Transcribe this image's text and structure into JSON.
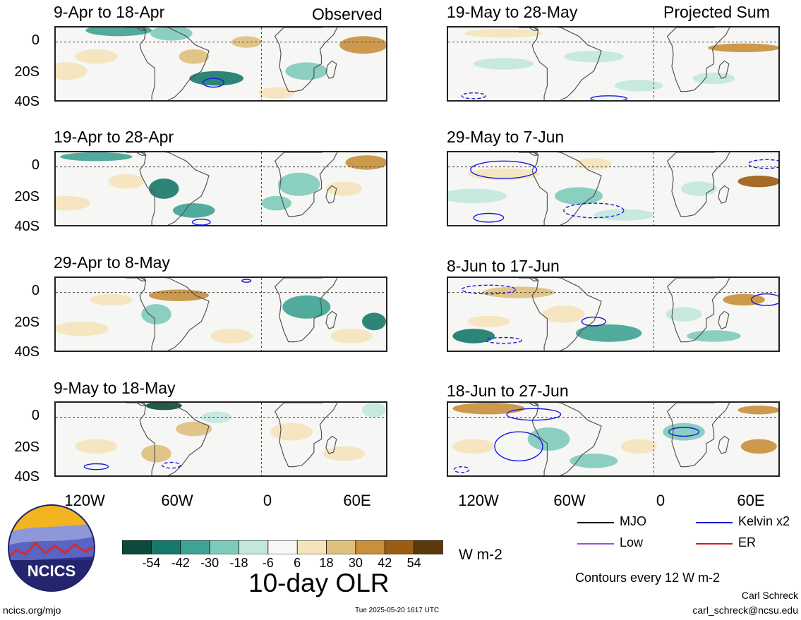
{
  "headers": {
    "left": "Observed",
    "right": "Projected Sum"
  },
  "panels": [
    {
      "title": "9-Apr to 18-Apr",
      "side": "left",
      "row": 0
    },
    {
      "title": "19-Apr to 28-Apr",
      "side": "left",
      "row": 1
    },
    {
      "title": "29-Apr to 8-May",
      "side": "left",
      "row": 2
    },
    {
      "title": "9-May to 18-May",
      "side": "left",
      "row": 3
    },
    {
      "title": "19-May to 28-May",
      "side": "right",
      "row": 0
    },
    {
      "title": "29-May to 7-Jun",
      "side": "right",
      "row": 1
    },
    {
      "title": "8-Jun to 17-Jun",
      "side": "right",
      "row": 2
    },
    {
      "title": "18-Jun to 27-Jun",
      "side": "right",
      "row": 3
    }
  ],
  "lat_labels": [
    "0",
    "20S",
    "40S"
  ],
  "lon_labels": [
    "120W",
    "60W",
    "0",
    "60E"
  ],
  "colorbar": {
    "colors": [
      "#0b4a3c",
      "#17796a",
      "#3fa394",
      "#7fcbbb",
      "#c2e8de",
      "#f7f7f5",
      "#f5e4bb",
      "#dfc07c",
      "#c98f3a",
      "#9c5d12",
      "#5a3a0c"
    ],
    "labels": [
      "-54",
      "-42",
      "-30",
      "-18",
      "-6",
      "6",
      "18",
      "30",
      "42",
      "54"
    ],
    "units": "W m-2",
    "title": "10-day OLR"
  },
  "legend": {
    "items": [
      {
        "label": "MJO",
        "color": "#000000"
      },
      {
        "label": "Kelvin x2",
        "color": "#1a1adc"
      },
      {
        "label": "Low",
        "color": "#9a4fd8"
      },
      {
        "label": "ER",
        "color": "#d81a1a"
      }
    ],
    "note": "Contours every 12 W m-2"
  },
  "logo": {
    "text": "NCICS"
  },
  "footer": {
    "site": "ncics.org/mjo",
    "timestamp": "Tue 2025-05-20 1617 UTC",
    "author": "Carl Schreck",
    "email": "carl_schreck@ncsu.edu"
  }
}
